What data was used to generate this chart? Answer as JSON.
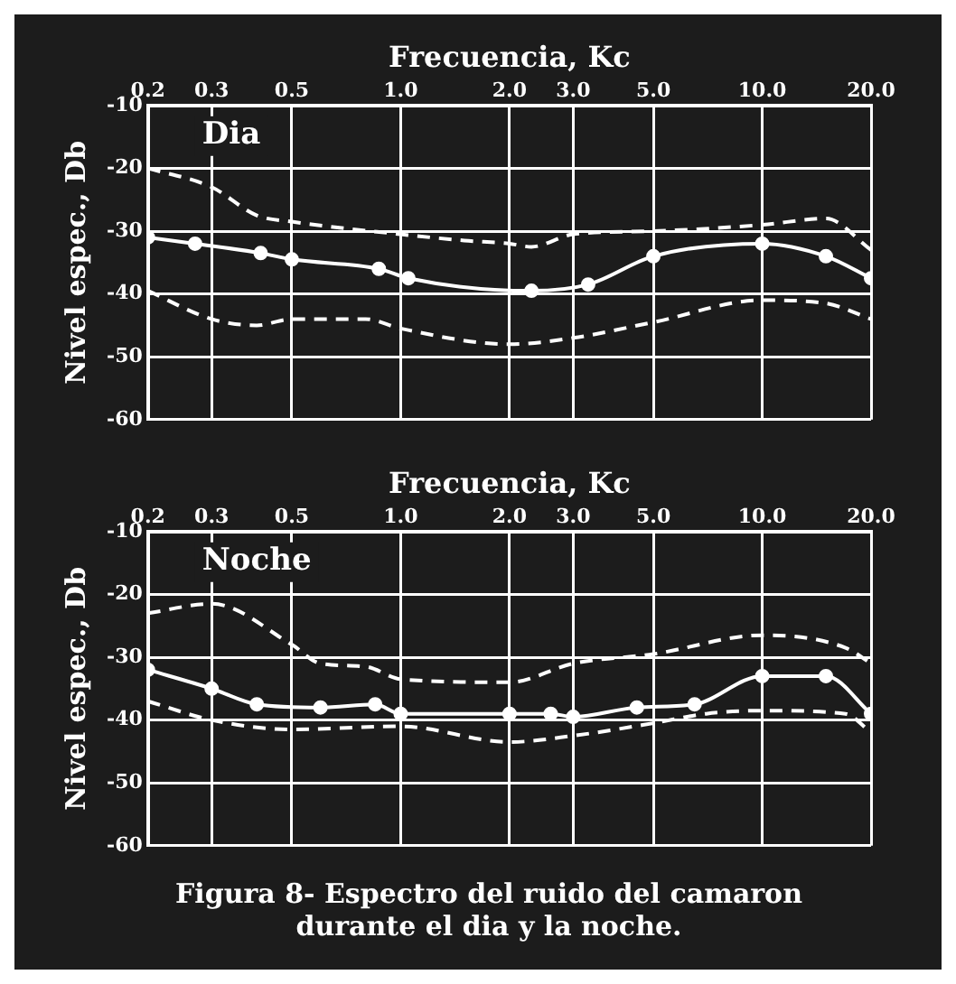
{
  "chart_data": [
    {
      "type": "line",
      "xlabel": "Frecuencia, Kc",
      "ylabel": "Nivel espec., Db",
      "log": "x",
      "grid": true,
      "legend": false,
      "xlim": [
        0.2,
        20
      ],
      "xticks": [
        {
          "value": 0.2,
          "label": "0.2"
        },
        {
          "value": 0.3,
          "label": "0.3"
        },
        {
          "value": 0.5,
          "label": "0.5"
        },
        {
          "value": 1,
          "label": "1.0"
        },
        {
          "value": 2,
          "label": "2.0"
        },
        {
          "value": 3,
          "label": "3.0"
        },
        {
          "value": 5,
          "label": "5.0"
        },
        {
          "value": 10,
          "label": "10.0"
        },
        {
          "value": 20,
          "label": "20.0"
        }
      ],
      "ylim": [
        -60,
        -10
      ],
      "yticks": [
        -60,
        -50,
        -40,
        -30,
        -20,
        -10
      ],
      "annotations": [
        "Dia"
      ],
      "series": [
        {
          "color": "#ffffff",
          "line_style": "dashed",
          "marker": "none",
          "x": [
            0.2,
            0.3,
            0.4,
            0.5,
            1,
            1.5,
            2,
            2.3,
            3,
            5,
            10,
            15,
            20
          ],
          "values": [
            -20,
            -23,
            -27.5,
            -28.5,
            -30.5,
            -31.5,
            -32,
            -32.5,
            -30.5,
            -30,
            -29,
            -28,
            -33
          ]
        },
        {
          "color": "#ffffff",
          "line_style": "solid",
          "marker": "circle",
          "x": [
            0.2,
            0.27,
            0.41,
            0.5,
            0.87,
            1.05,
            2.3,
            3.3,
            5,
            10,
            15,
            20
          ],
          "values": [
            -31,
            -32,
            -33.5,
            -34.5,
            -36,
            -37.5,
            -39.5,
            -38.5,
            -34,
            -32,
            -34,
            -37.5
          ]
        },
        {
          "color": "#ffffff",
          "line_style": "dashed",
          "marker": "none",
          "x": [
            0.2,
            0.3,
            0.4,
            0.5,
            0.8,
            1,
            2,
            3,
            5,
            10,
            15,
            20
          ],
          "values": [
            -39.5,
            -44,
            -45,
            -44,
            -44,
            -45.5,
            -48,
            -47,
            -44.5,
            -41,
            -41.5,
            -44
          ]
        }
      ]
    },
    {
      "type": "line",
      "xlabel": "Frecuencia, Kc",
      "ylabel": "Nivel espec., Db",
      "log": "x",
      "grid": true,
      "legend": false,
      "xlim": [
        0.2,
        20
      ],
      "xticks": [
        {
          "value": 0.2,
          "label": "0.2"
        },
        {
          "value": 0.3,
          "label": "0.3"
        },
        {
          "value": 0.5,
          "label": "0.5"
        },
        {
          "value": 1,
          "label": "1.0"
        },
        {
          "value": 2,
          "label": "2.0"
        },
        {
          "value": 3,
          "label": "3.0"
        },
        {
          "value": 5,
          "label": "5.0"
        },
        {
          "value": 10,
          "label": "10.0"
        },
        {
          "value": 20,
          "label": "20.0"
        }
      ],
      "ylim": [
        -60,
        -10
      ],
      "yticks": [
        -60,
        -50,
        -40,
        -30,
        -20,
        -10
      ],
      "annotations": [
        "Noche",
        "Figura 8- Espectro del ruido del camaron durante el dia y la noche."
      ],
      "series": [
        {
          "color": "#ffffff",
          "line_style": "dashed",
          "marker": "none",
          "x": [
            0.2,
            0.3,
            0.5,
            0.6,
            0.8,
            1,
            2,
            3,
            5,
            10,
            17,
            20
          ],
          "values": [
            -23,
            -21.5,
            -28,
            -31,
            -31.5,
            -33.5,
            -34,
            -31,
            -29.5,
            -26.5,
            -28.5,
            -31
          ]
        },
        {
          "color": "#ffffff",
          "line_style": "solid",
          "marker": "circle",
          "x": [
            0.2,
            0.3,
            0.4,
            0.6,
            0.85,
            1,
            2,
            2.6,
            3,
            4.5,
            6.5,
            10,
            15,
            20
          ],
          "values": [
            -32,
            -35,
            -37.5,
            -38,
            -37.5,
            -39,
            -39,
            -39,
            -39.5,
            -38,
            -37.5,
            -33,
            -33,
            -39
          ]
        },
        {
          "color": "#ffffff",
          "line_style": "dashed",
          "marker": "none",
          "x": [
            0.2,
            0.3,
            0.5,
            1,
            2,
            3,
            5,
            7,
            10,
            17,
            20
          ],
          "values": [
            -37,
            -40,
            -41.5,
            -41,
            -43.5,
            -42.5,
            -40.5,
            -39,
            -38.5,
            -39,
            -42
          ]
        }
      ]
    }
  ]
}
